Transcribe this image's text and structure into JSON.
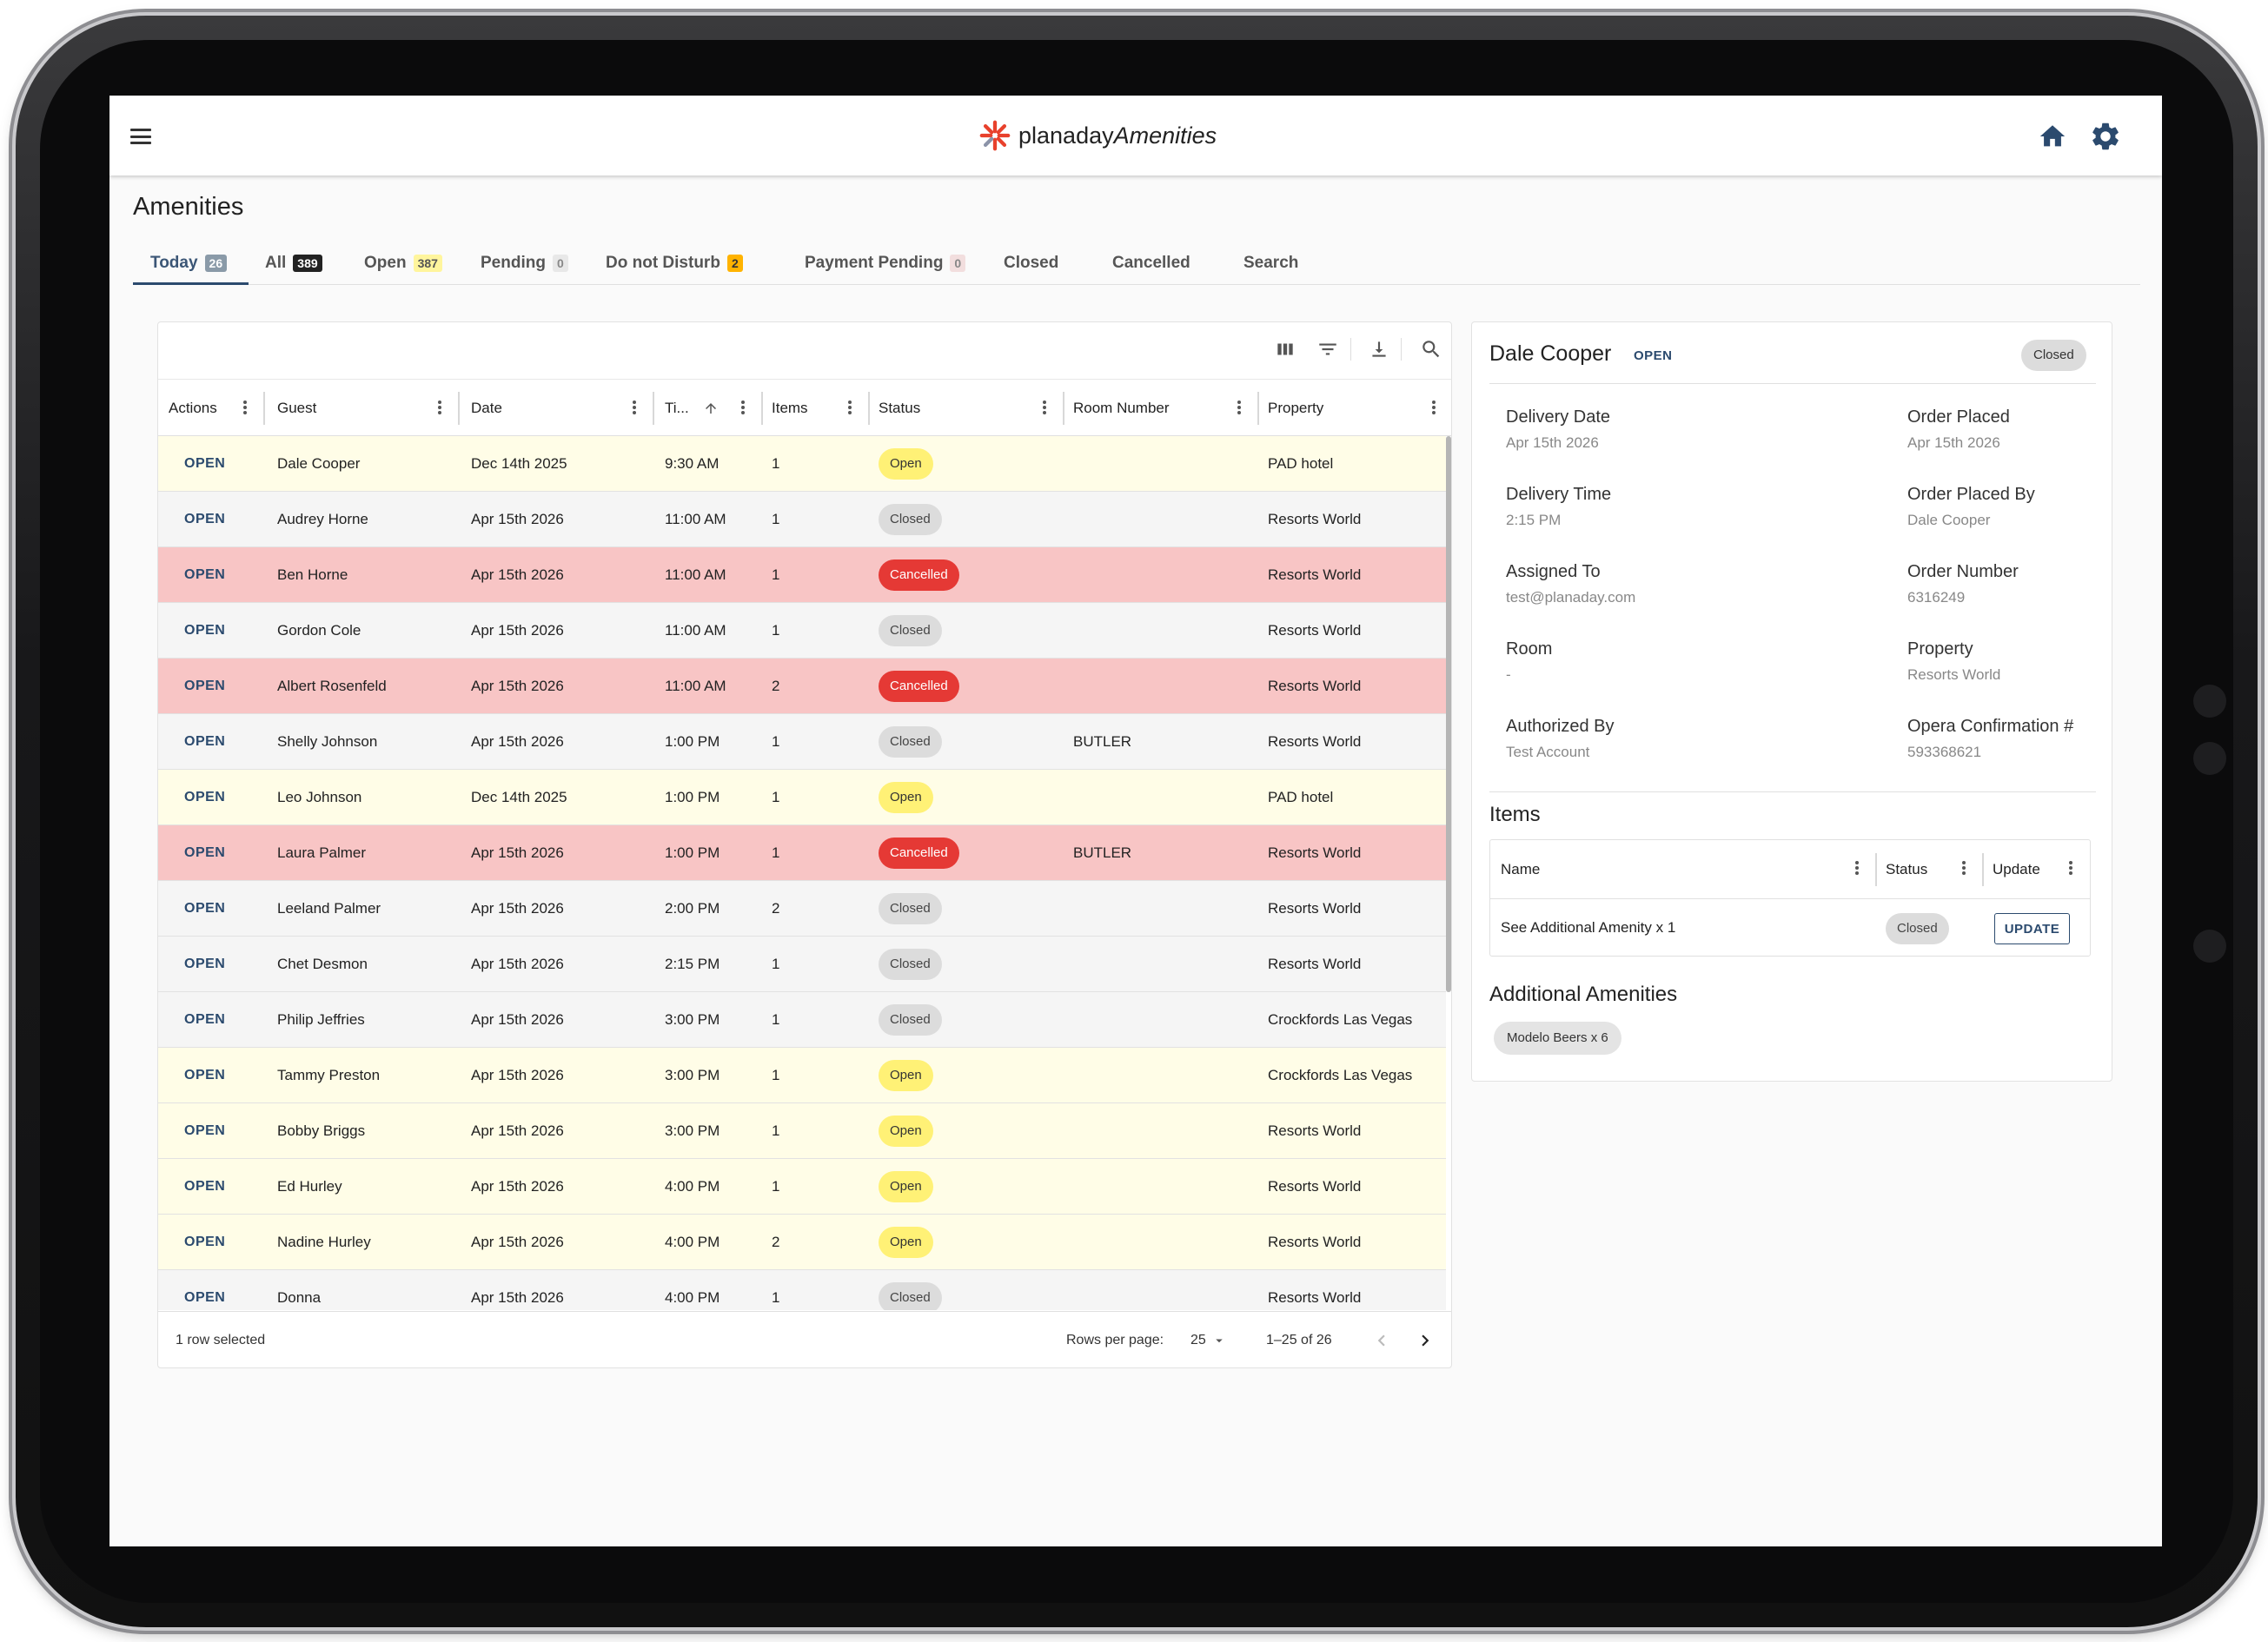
{
  "app": {
    "brand_plain": "planaday",
    "brand_italic": "Amenities",
    "page_title": "Amenities"
  },
  "tabs": [
    {
      "label": "Today",
      "count": "26"
    },
    {
      "label": "All",
      "count": "389"
    },
    {
      "label": "Open",
      "count": "387"
    },
    {
      "label": "Pending",
      "count": "0"
    },
    {
      "label": "Do not Disturb",
      "count": "2"
    },
    {
      "label": "Payment Pending",
      "count": "0"
    },
    {
      "label": "Closed"
    },
    {
      "label": "Cancelled"
    },
    {
      "label": "Search"
    }
  ],
  "table": {
    "columns": [
      "Actions",
      "Guest",
      "Date",
      "Ti...",
      "Items",
      "Status",
      "Room Number",
      "Property"
    ],
    "rows": [
      {
        "action": "OPEN",
        "guest": "Dale Cooper",
        "date": "Dec 14th 2025",
        "time": "9:30 AM",
        "items": "1",
        "status": "Open",
        "room": "",
        "property": "PAD hotel"
      },
      {
        "action": "OPEN",
        "guest": "Audrey Horne",
        "date": "Apr 15th 2026",
        "time": "11:00 AM",
        "items": "1",
        "status": "Closed",
        "room": "",
        "property": "Resorts World"
      },
      {
        "action": "OPEN",
        "guest": "Ben Horne",
        "date": "Apr 15th 2026",
        "time": "11:00 AM",
        "items": "1",
        "status": "Cancelled",
        "room": "",
        "property": "Resorts World"
      },
      {
        "action": "OPEN",
        "guest": "Gordon Cole",
        "date": "Apr 15th 2026",
        "time": "11:00 AM",
        "items": "1",
        "status": "Closed",
        "room": "",
        "property": "Resorts World"
      },
      {
        "action": "OPEN",
        "guest": "Albert Rosenfeld",
        "date": "Apr 15th 2026",
        "time": "11:00 AM",
        "items": "2",
        "status": "Cancelled",
        "room": "",
        "property": "Resorts World"
      },
      {
        "action": "OPEN",
        "guest": "Shelly Johnson",
        "date": "Apr 15th 2026",
        "time": "1:00 PM",
        "items": "1",
        "status": "Closed",
        "room": "BUTLER",
        "property": "Resorts World"
      },
      {
        "action": "OPEN",
        "guest": "Leo Johnson",
        "date": "Dec 14th 2025",
        "time": "1:00 PM",
        "items": "1",
        "status": "Open",
        "room": "",
        "property": "PAD hotel"
      },
      {
        "action": "OPEN",
        "guest": "Laura Palmer",
        "date": "Apr 15th 2026",
        "time": "1:00 PM",
        "items": "1",
        "status": "Cancelled",
        "room": "BUTLER",
        "property": "Resorts World"
      },
      {
        "action": "OPEN",
        "guest": "Leeland Palmer",
        "date": "Apr 15th 2026",
        "time": "2:00 PM",
        "items": "2",
        "status": "Closed",
        "room": "",
        "property": "Resorts World"
      },
      {
        "action": "OPEN",
        "guest": "Chet Desmon",
        "date": "Apr 15th 2026",
        "time": "2:15 PM",
        "items": "1",
        "status": "Closed",
        "room": "",
        "property": "Resorts World"
      },
      {
        "action": "OPEN",
        "guest": "Philip Jeffries",
        "date": "Apr 15th 2026",
        "time": "3:00 PM",
        "items": "1",
        "status": "Closed",
        "room": "",
        "property": "Crockfords Las Vegas"
      },
      {
        "action": "OPEN",
        "guest": "Tammy Preston",
        "date": "Apr 15th 2026",
        "time": "3:00 PM",
        "items": "1",
        "status": "Open",
        "room": "",
        "property": "Crockfords Las Vegas"
      },
      {
        "action": "OPEN",
        "guest": "Bobby Briggs",
        "date": "Apr 15th 2026",
        "time": "3:00 PM",
        "items": "1",
        "status": "Open",
        "room": "",
        "property": "Resorts World"
      },
      {
        "action": "OPEN",
        "guest": "Ed Hurley",
        "date": "Apr 15th 2026",
        "time": "4:00 PM",
        "items": "1",
        "status": "Open",
        "room": "",
        "property": "Resorts World"
      },
      {
        "action": "OPEN",
        "guest": "Nadine Hurley",
        "date": "Apr 15th 2026",
        "time": "4:00 PM",
        "items": "2",
        "status": "Open",
        "room": "",
        "property": "Resorts World"
      },
      {
        "action": "OPEN",
        "guest": "Donna",
        "date": "Apr 15th 2026",
        "time": "4:00 PM",
        "items": "1",
        "status": "Closed",
        "room": "",
        "property": "Resorts World"
      }
    ],
    "footer": {
      "selected": "1 row selected",
      "rows_per_page_label": "Rows per page:",
      "rows_per_page_value": "25",
      "range": "1–25 of 26"
    }
  },
  "details": {
    "name": "Dale Cooper",
    "action": "OPEN",
    "status": "Closed",
    "fields_left": [
      {
        "label": "Delivery Date",
        "value": "Apr 15th 2026"
      },
      {
        "label": "Delivery Time",
        "value": "2:15 PM"
      },
      {
        "label": "Assigned To",
        "value": "test@planaday.com"
      },
      {
        "label": "Room",
        "value": "-"
      },
      {
        "label": "Authorized By",
        "value": "Test Account"
      }
    ],
    "fields_right": [
      {
        "label": "Order Placed",
        "value": "Apr 15th 2026"
      },
      {
        "label": "Order Placed By",
        "value": "Dale Cooper"
      },
      {
        "label": "Order Number",
        "value": "6316249"
      },
      {
        "label": "Property",
        "value": "Resorts World"
      },
      {
        "label": "Opera Confirmation #",
        "value": "593368621"
      }
    ],
    "items_title": "Items",
    "items_columns": [
      "Name",
      "Status",
      "Update"
    ],
    "items_row": {
      "name": "See Additional Amenity x 1",
      "status": "Closed",
      "button": "UPDATE"
    },
    "additional_title": "Additional Amenities",
    "additional_items": [
      "Modelo Beers x 6"
    ]
  },
  "colors": {
    "accent": "#2b4a6e",
    "row_open": "#fffde7",
    "row_closed": "#f5f5f5",
    "row_cancelled": "#f8c5c5",
    "chip_open": "#fff176",
    "chip_cancelled": "#e53935",
    "logo_red": "#e8412c"
  },
  "icons": [
    "menu-icon",
    "home-icon",
    "gear-icon",
    "columns-icon",
    "filter-icon",
    "download-icon",
    "search-icon",
    "more-vert-icon",
    "sort-arrow-up-icon",
    "chevron-left-icon",
    "chevron-right-icon",
    "dropdown-arrow-icon"
  ]
}
